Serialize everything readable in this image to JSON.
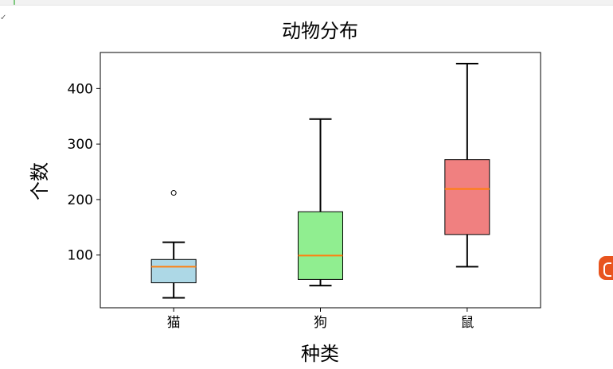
{
  "chart_data": {
    "type": "box",
    "title": "动物分布",
    "xlabel": "种类",
    "ylabel": "个数",
    "ylim": [
      5,
      465
    ],
    "yticks": [
      100,
      200,
      300,
      400
    ],
    "categories": [
      "猫",
      "狗",
      "鼠"
    ],
    "boxes": [
      {
        "category": "猫",
        "min": 23,
        "q1": 50,
        "median": 79,
        "q3": 92,
        "max": 123,
        "fliers": [
          212
        ],
        "color": "#add8e6"
      },
      {
        "category": "狗",
        "min": 45,
        "q1": 56,
        "median": 99,
        "q3": 178,
        "max": 345,
        "fliers": [],
        "color": "#90ee90"
      },
      {
        "category": "鼠",
        "min": 79,
        "q1": 137,
        "median": 219,
        "q3": 272,
        "max": 445,
        "fliers": [],
        "color": "#f08080"
      }
    ],
    "median_color": "#ff7f0e",
    "grid": false
  }
}
